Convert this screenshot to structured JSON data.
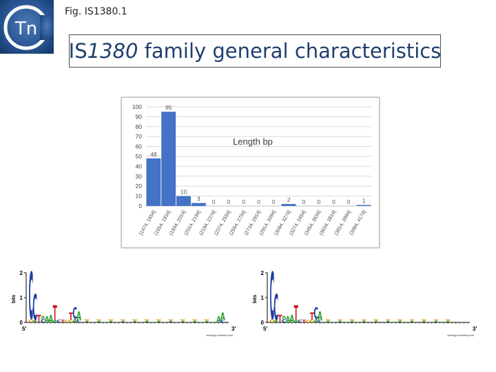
{
  "header": {
    "fig_label": "Fig. IS1380.1",
    "title_prefix": "IS",
    "title_italic": "1380",
    "title_suffix": " family general characteristics",
    "logo_text": "Tn"
  },
  "chart_data": {
    "type": "bar",
    "title": "Length bp",
    "xlabel": "",
    "ylabel": "",
    "ylim": [
      0,
      100
    ],
    "yticks": [
      0,
      10,
      20,
      30,
      40,
      50,
      60,
      70,
      80,
      90,
      100
    ],
    "grid": true,
    "bar_color": "#4472c4",
    "categories": [
      "[1474, 1654]",
      "(1654, 1834]",
      "(1834, 2014]",
      "(2014, 2194]",
      "(2194, 2374]",
      "(2374, 2554]",
      "(2554, 2734]",
      "(2734, 2914]",
      "(2914, 3094]",
      "(3094, 3274]",
      "(3274, 3454]",
      "(3454, 3634]",
      "(3634, 3814]",
      "(3814, 3994]",
      "(3994, 4174]"
    ],
    "values": [
      48,
      95,
      10,
      3,
      0,
      0,
      0,
      0,
      0,
      2,
      0,
      0,
      0,
      0,
      1
    ]
  },
  "sequence_logos": [
    {
      "y_axis_label": "bits",
      "y_ticks": [
        "2",
        "1",
        "0"
      ],
      "end_5": "5'",
      "end_3": "3'",
      "credit": "weblogo.berkeley.edu",
      "letters": [
        "C",
        "G",
        "C",
        "A",
        "A",
        "T",
        "T",
        "C",
        "A",
        "A",
        "A"
      ],
      "colors": {
        "A": "#2e9e2e",
        "C": "#1f3fa8",
        "G": "#e0a020",
        "T": "#d02020"
      }
    },
    {
      "y_axis_label": "bits",
      "y_ticks": [
        "2",
        "1",
        "0"
      ],
      "end_5": "5'",
      "end_3": "3'",
      "credit": "weblogo.berkeley.edu",
      "letters": [
        "C",
        "G",
        "C",
        "A",
        "A",
        "T",
        "T",
        "C",
        "A"
      ],
      "colors": {
        "A": "#2e9e2e",
        "C": "#1f3fa8",
        "G": "#e0a020",
        "T": "#d02020"
      }
    }
  ]
}
